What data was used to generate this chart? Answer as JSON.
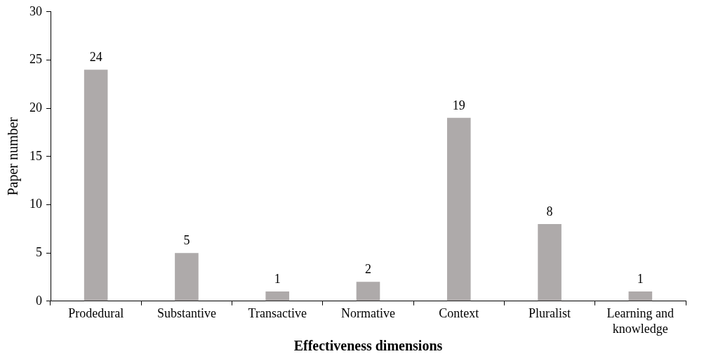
{
  "chart_data": {
    "type": "bar",
    "xlabel": "Effectiveness dimensions",
    "ylabel": "Paper number",
    "categories": [
      "Prodedural",
      "Substantive",
      "Transactive",
      "Normative",
      "Context",
      "Pluralist",
      "Learning and knowledge"
    ],
    "values": [
      24,
      5,
      1,
      2,
      19,
      8,
      1
    ],
    "color": "#aeaaaa",
    "ylim": [
      0,
      30
    ],
    "yticks": [
      0,
      5,
      10,
      15,
      20,
      25,
      30
    ],
    "grid": false,
    "legend": false,
    "data_labels": true
  }
}
